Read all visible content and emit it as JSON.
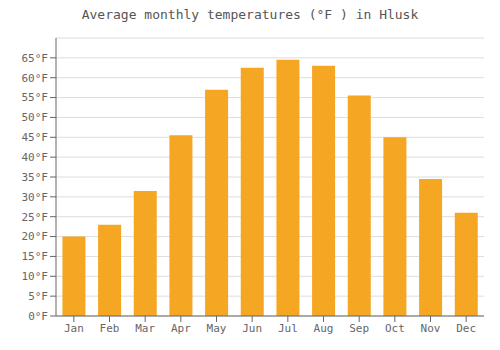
{
  "chart_data": {
    "type": "bar",
    "title": "Average monthly temperatures (°F ) in Hlusk",
    "categories": [
      "Jan",
      "Feb",
      "Mar",
      "Apr",
      "May",
      "Jun",
      "Jul",
      "Aug",
      "Sep",
      "Oct",
      "Nov",
      "Dec"
    ],
    "values": [
      20,
      23,
      31.5,
      45.5,
      57,
      62.5,
      64.5,
      63,
      55.5,
      45,
      34.5,
      26
    ],
    "color": "#F5A623",
    "ylim": [
      0,
      70
    ],
    "yticks": [
      {
        "value": 0,
        "label": "0°F"
      },
      {
        "value": 5,
        "label": "5°F"
      },
      {
        "value": 10,
        "label": "10°F"
      },
      {
        "value": 15,
        "label": "15°F"
      },
      {
        "value": 20,
        "label": "20°F"
      },
      {
        "value": 25,
        "label": "25°F"
      },
      {
        "value": 30,
        "label": "30°F"
      },
      {
        "value": 35,
        "label": "35°F"
      },
      {
        "value": 40,
        "label": "40°F"
      },
      {
        "value": 45,
        "label": "45°F"
      },
      {
        "value": 50,
        "label": "50°F"
      },
      {
        "value": 55,
        "label": "55°F"
      },
      {
        "value": 60,
        "label": "60°F"
      },
      {
        "value": 65,
        "label": "65°F"
      }
    ],
    "grid": true
  }
}
